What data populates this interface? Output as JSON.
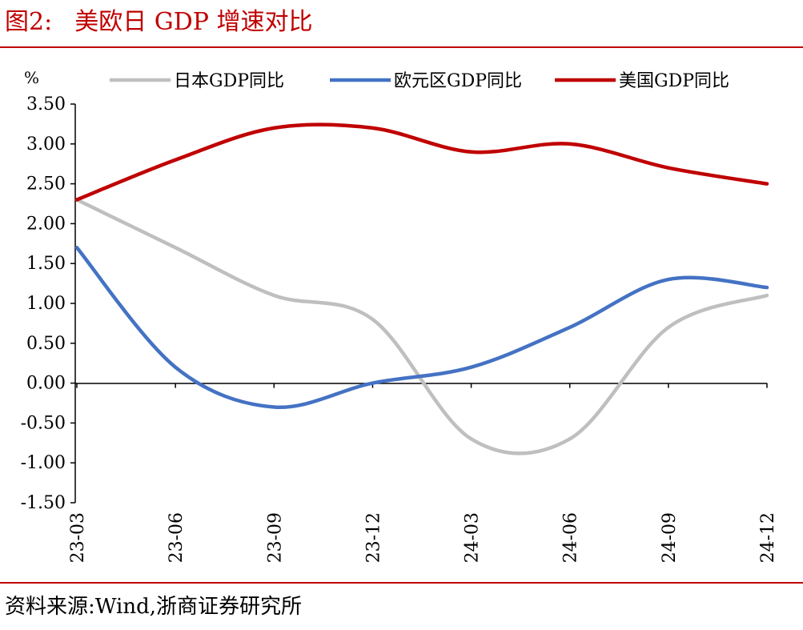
{
  "figure": {
    "number_label": "图2:",
    "title": "美欧日 GDP 增速对比",
    "source": "资料来源:Wind,浙商证券研究所"
  },
  "colors": {
    "accent": "#c00000",
    "japan": "#bfbfbf",
    "eurozone": "#4472c4",
    "us": "#c00000"
  },
  "chart_data": {
    "type": "line",
    "title": "美欧日 GDP 增速对比",
    "ylabel": "%",
    "xlabel": "",
    "ylim": [
      -1.5,
      3.5
    ],
    "y_ticks": [
      3.5,
      3.0,
      2.5,
      2.0,
      1.5,
      1.0,
      0.5,
      0.0,
      -0.5,
      -1.0,
      -1.5
    ],
    "y_tick_labels": [
      "3.50",
      "3.00",
      "2.50",
      "2.00",
      "1.50",
      "1.00",
      "0.50",
      "0.00",
      "-0.50",
      "-1.00",
      "-1.50"
    ],
    "x": [
      "23-03",
      "23-06",
      "23-09",
      "23-12",
      "24-03",
      "24-06",
      "24-09",
      "24-12"
    ],
    "x_tick_labels": [
      "23-03",
      "23-06",
      "23-09",
      "23-12",
      "24-03",
      "24-06",
      "24-09",
      "24-12"
    ],
    "grid": false,
    "legend_position": "top",
    "series": [
      {
        "name": "日本GDP同比",
        "color_key": "japan",
        "values": [
          2.3,
          1.7,
          1.1,
          0.8,
          -0.7,
          -0.7,
          0.7,
          1.1
        ]
      },
      {
        "name": "欧元区GDP同比",
        "color_key": "eurozone",
        "values": [
          1.7,
          0.2,
          -0.3,
          0.0,
          0.2,
          0.7,
          1.3,
          1.2
        ]
      },
      {
        "name": "美国GDP同比",
        "color_key": "us",
        "values": [
          2.3,
          2.8,
          3.2,
          3.2,
          2.9,
          3.0,
          2.7,
          2.5
        ]
      }
    ]
  }
}
